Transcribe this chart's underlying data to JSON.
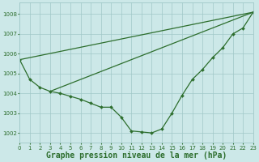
{
  "title": "Graphe pression niveau de la mer (hPa)",
  "background_color": "#cce8e8",
  "grid_color": "#a0c8c8",
  "line_color": "#2d6e2d",
  "xlim": [
    0,
    23
  ],
  "ylim": [
    1001.5,
    1008.6
  ],
  "yticks": [
    1002,
    1003,
    1004,
    1005,
    1006,
    1007,
    1008
  ],
  "xticks": [
    0,
    1,
    2,
    3,
    4,
    5,
    6,
    7,
    8,
    9,
    10,
    11,
    12,
    13,
    14,
    15,
    16,
    17,
    18,
    19,
    20,
    21,
    22,
    23
  ],
  "main_series": [
    1005.7,
    1004.7,
    1004.3,
    1004.1,
    1004.0,
    1003.85,
    1003.7,
    1003.5,
    1003.3,
    1003.3,
    1002.8,
    1002.1,
    1002.05,
    1002.0,
    1002.2,
    1003.0,
    1003.9,
    1004.7,
    1005.2,
    1005.8,
    1006.3,
    1007.0,
    1007.3,
    1008.1
  ],
  "straight_line1": [
    [
      0,
      1005.7
    ],
    [
      23,
      1008.1
    ]
  ],
  "straight_line2": [
    [
      3,
      1004.1
    ],
    [
      23,
      1008.1
    ]
  ],
  "marker": "D",
  "marker_size": 2.0,
  "line_width": 0.9,
  "font_color": "#2d6e2d",
  "title_fontsize": 7.0,
  "tick_fontsize": 5.0
}
